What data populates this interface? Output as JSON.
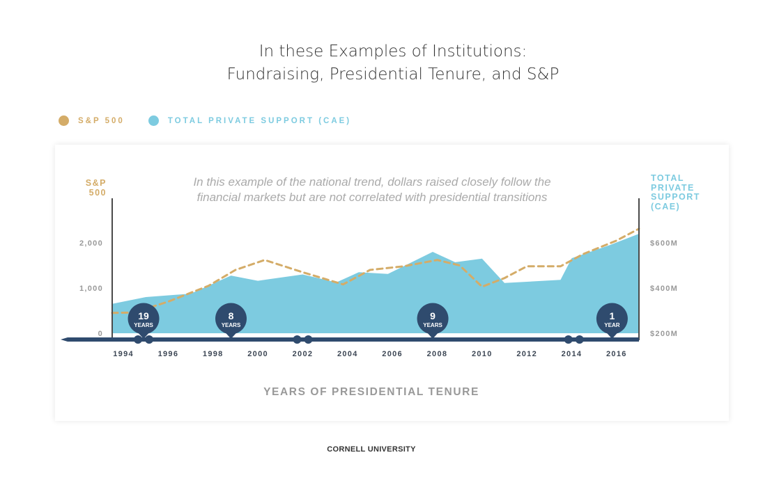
{
  "title": {
    "line1": "In these Examples of Institutions:",
    "line2": "Fundraising, Presidential Tenure, and S&P"
  },
  "legend": [
    {
      "label": "S&P 500",
      "color": "#d4ac68"
    },
    {
      "label": "TOTAL PRIVATE SUPPORT (CAE)",
      "color": "#7dcbe0"
    }
  ],
  "footer": "CORNELL UNIVERSITY",
  "chart_data": {
    "type": "area",
    "subtitle_line1": "In this example of the national trend, dollars raised closely follow the",
    "subtitle_line2": "financial markets but are not correlated with presidential transitions",
    "left_axis_title_line1": "S&P",
    "left_axis_title_line2": "500",
    "right_axis_title_line1": "TOTAL",
    "right_axis_title_line2": "PRIVATE",
    "right_axis_title_line3": "SUPPORT",
    "right_axis_title_line4": "(CAE)",
    "xlabel": "YEARS OF PRESIDENTIAL TENURE",
    "xlim": [
      1993.5,
      2017
    ],
    "x_ticks": [
      "1994",
      "1996",
      "1998",
      "2000",
      "2002",
      "2004",
      "2006",
      "2008",
      "2010",
      "2012",
      "2014",
      "2016"
    ],
    "left_axis": {
      "ylim": [
        0,
        3000
      ],
      "ticks": [
        {
          "value": 0,
          "label": "0"
        },
        {
          "value": 1000,
          "label": "1,000"
        },
        {
          "value": 2000,
          "label": "2,000"
        }
      ]
    },
    "right_axis": {
      "ylim": [
        200,
        500
      ],
      "ticks": [
        {
          "value": 200,
          "label": "$200M"
        },
        {
          "value": 400,
          "label": "$400M"
        },
        {
          "value": 600,
          "label": "$600M"
        }
      ]
    },
    "series": [
      {
        "name": "TOTAL PRIVATE SUPPORT (CAE)",
        "type": "area",
        "axis": "right",
        "color": "#7dcbe0",
        "x": [
          1993.5,
          1995,
          1997,
          1998.8,
          2000,
          2002,
          2003.5,
          2004.5,
          2005.8,
          2007.8,
          2008.8,
          2010,
          2011,
          2013.5,
          2014,
          2015.7,
          2017
        ],
        "values": [
          330,
          360,
          375,
          455,
          432,
          460,
          425,
          470,
          462,
          560,
          514,
          530,
          422,
          436,
          532,
          590,
          640
        ]
      },
      {
        "name": "S&P 500",
        "type": "line",
        "style": "dashed",
        "axis": "left",
        "color": "#d4ac68",
        "x": [
          1993.5,
          1994.5,
          1996,
          1997.8,
          1999,
          2000.3,
          2002,
          2003.8,
          2005,
          2006.5,
          2008,
          2009,
          2010,
          2011,
          2012,
          2013.5,
          2014.5,
          2016,
          2017
        ],
        "values": [
          450,
          460,
          700,
          1050,
          1400,
          1620,
          1350,
          1080,
          1400,
          1480,
          1620,
          1500,
          1030,
          1220,
          1480,
          1480,
          1750,
          2050,
          2310
        ]
      }
    ],
    "presidential_tenures": [
      {
        "count": "19",
        "unit": "YEARS",
        "x": 1994.9
      },
      {
        "count": "8",
        "unit": "YEARS",
        "x": 1998.8
      },
      {
        "count": "9",
        "unit": "YEARS",
        "x": 2007.8
      },
      {
        "count": "1",
        "unit": "YEAR",
        "x": 2015.8
      }
    ],
    "transitions": [
      {
        "x": 2002.0
      },
      {
        "x": 2014.1
      }
    ],
    "colors": {
      "marker": "#2f4b6e",
      "axis": "#4a4a4a",
      "tick_text": "#999999",
      "year_text": "#3c4654"
    }
  }
}
